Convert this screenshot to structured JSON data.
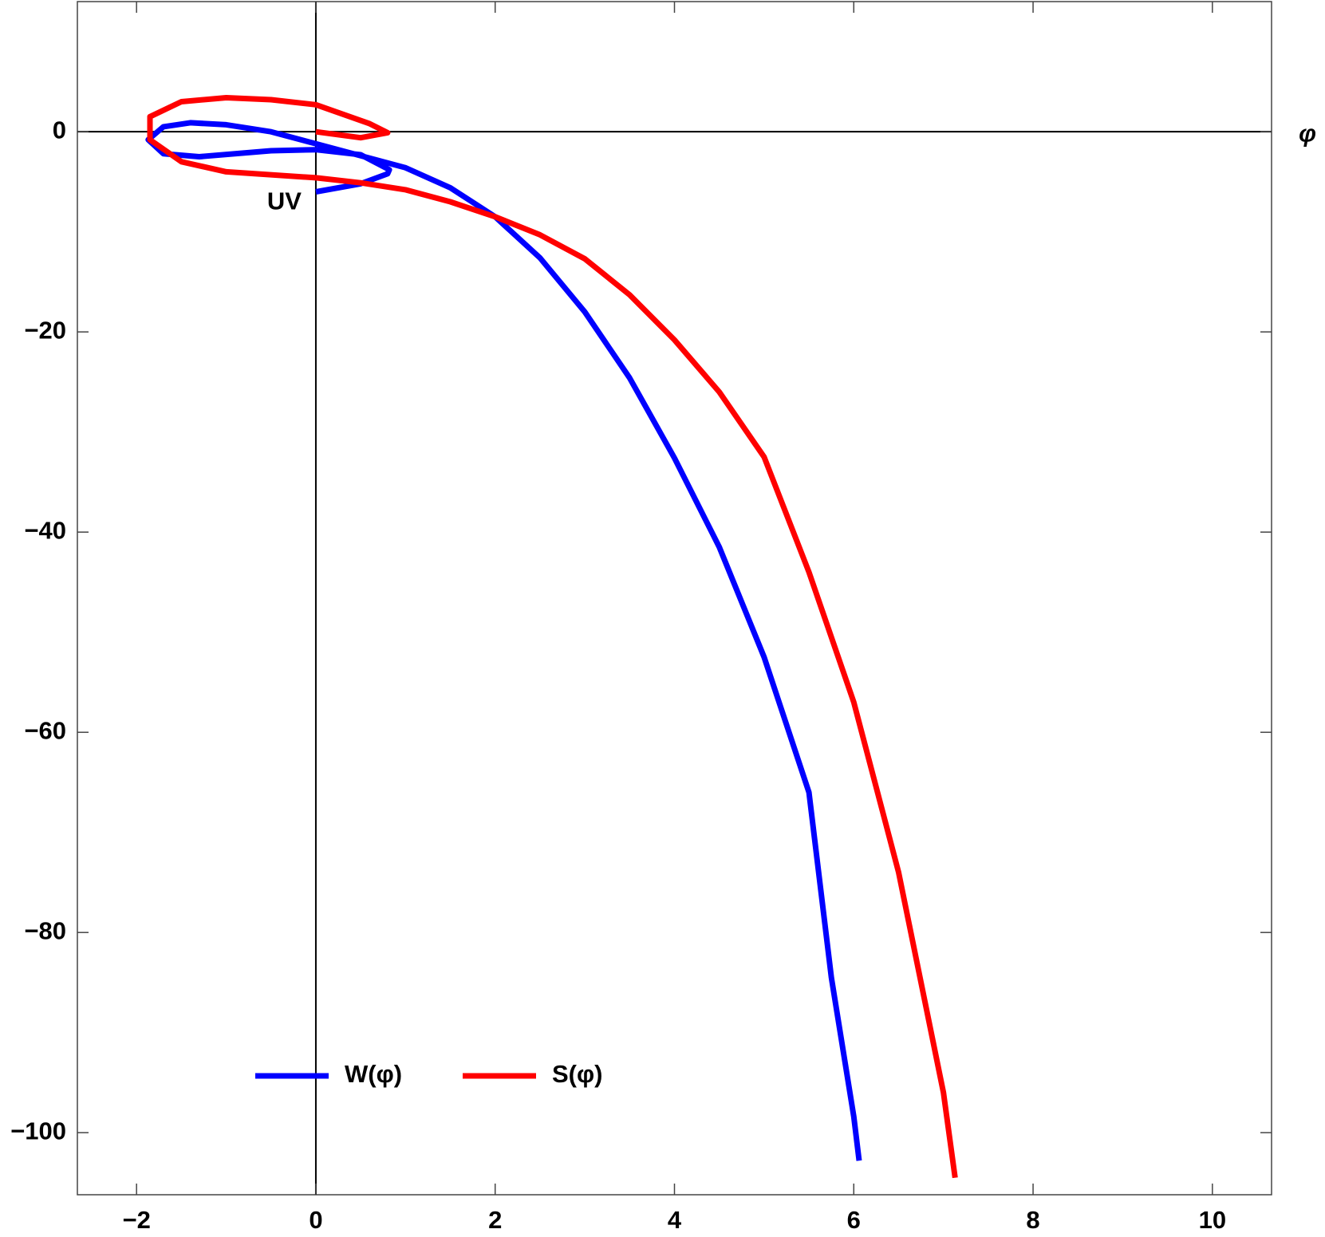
{
  "chart_data": {
    "type": "line",
    "x_label": "φ",
    "annotation": "UV",
    "xlim": [
      -2.66,
      10.66
    ],
    "ylim": [
      -106.2,
      13
    ],
    "xticks": [
      {
        "value": -2,
        "label": "−2"
      },
      0,
      2,
      4,
      6,
      8,
      10
    ],
    "yticks": [
      0,
      {
        "value": -20,
        "label": "−20"
      },
      {
        "value": -40,
        "label": "−40"
      },
      {
        "value": -60,
        "label": "−60"
      },
      {
        "value": -80,
        "label": "−80"
      },
      {
        "value": -100,
        "label": "−100"
      }
    ],
    "legend": "bottom-left",
    "series": [
      {
        "name": "W(φ)",
        "color": "#0000ff",
        "x": [
          0,
          0.5,
          0.8,
          0.82,
          0.5,
          0,
          -0.5,
          -1.3,
          -1.7,
          -1.87,
          -1.7,
          -1.4,
          -1,
          -0.5,
          0,
          0.5,
          1,
          1.5,
          2,
          2.5,
          3,
          3.5,
          4,
          4.5,
          5,
          5.5,
          5.75,
          6,
          6.06
        ],
        "values": [
          -6,
          -5.2,
          -4.2,
          -3.8,
          -2.3,
          -1.8,
          -1.9,
          -2.5,
          -2.2,
          -0.8,
          0.5,
          0.9,
          0.7,
          0,
          -1.2,
          -2.4,
          -3.6,
          -5.6,
          -8.5,
          -12.6,
          -18,
          -24.6,
          -32.6,
          -41.5,
          -52.5,
          -66,
          -84.5,
          -98.4,
          -102.8
        ]
      },
      {
        "name": "S(φ)",
        "color": "#ff0000",
        "x": [
          0,
          0.5,
          0.8,
          0.6,
          0,
          -0.5,
          -1,
          -1.5,
          -1.85,
          -1.85,
          -1.5,
          -1,
          0,
          0.5,
          1,
          1.5,
          2,
          2.5,
          3,
          3.5,
          4,
          4.5,
          5,
          5.5,
          6,
          6.5,
          7,
          7.13
        ],
        "values": [
          0,
          -0.6,
          -0.1,
          0.8,
          2.7,
          3.2,
          3.4,
          3,
          1.5,
          -0.8,
          -3,
          -4,
          -4.6,
          -5.1,
          -5.8,
          -7,
          -8.5,
          -10.3,
          -12.7,
          -16.3,
          -20.8,
          -26,
          -32.5,
          -44,
          -57,
          -74,
          -96,
          -104.5
        ]
      }
    ]
  }
}
